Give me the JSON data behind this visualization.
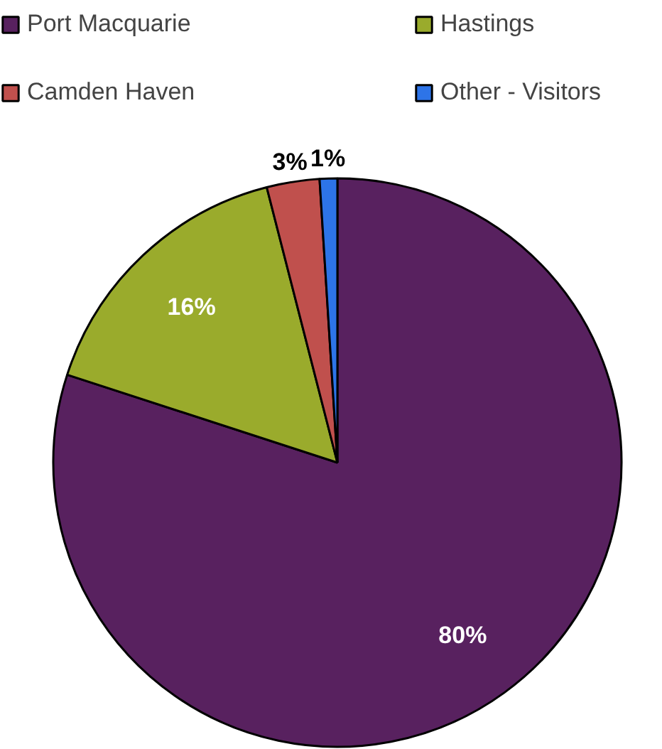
{
  "chart_data": {
    "type": "pie",
    "categories": [
      "Port Macquarie",
      "Hastings",
      "Camden Haven",
      "Other - Visitors"
    ],
    "values": [
      80,
      16,
      3,
      1
    ],
    "colors": [
      "#58215f",
      "#9aab2c",
      "#c0504d",
      "#2d74e8"
    ],
    "value_labels": [
      "80%",
      "16%",
      "3%",
      "1%"
    ],
    "legend": "top"
  }
}
